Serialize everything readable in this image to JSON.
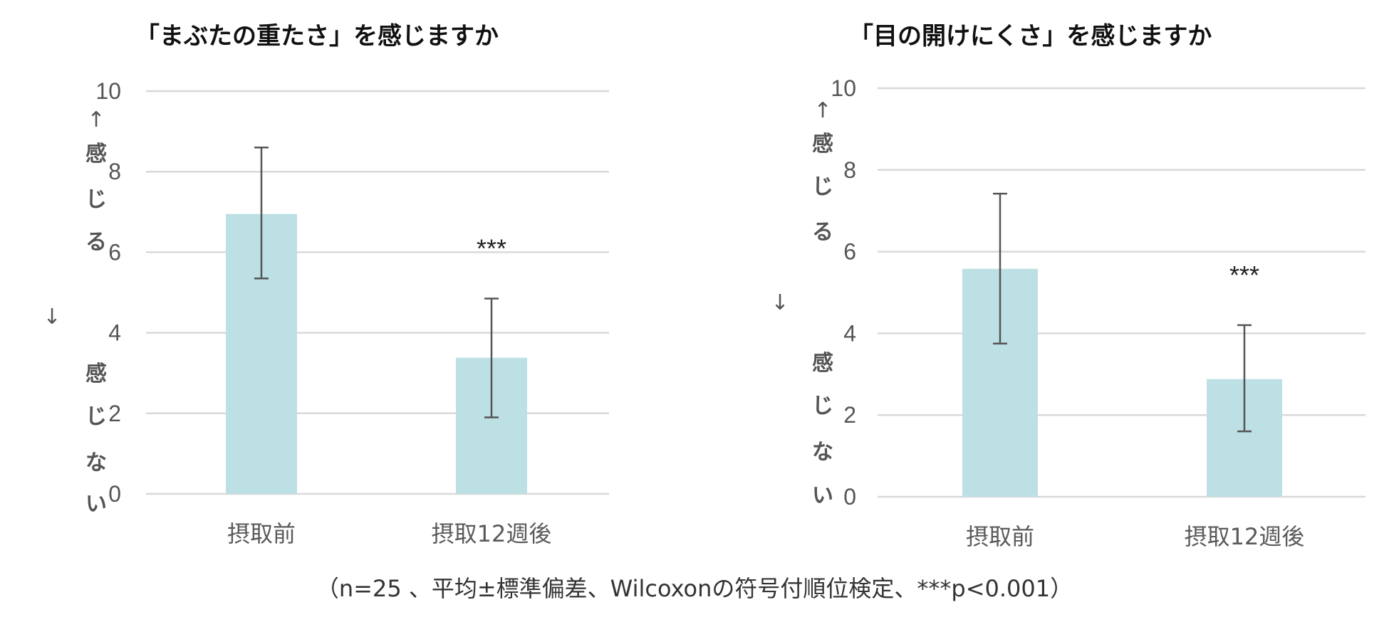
{
  "chart_data": [
    {
      "type": "bar",
      "title": "「まぶたの重たさ」を感じますか",
      "categories": [
        "摂取前",
        "摂取12週後"
      ],
      "values": [
        6.95,
        3.38
      ],
      "error_upper": [
        8.6,
        4.85
      ],
      "error_lower": [
        5.35,
        1.9
      ],
      "annotations": [
        "",
        "***"
      ],
      "ylim": [
        0,
        10
      ],
      "yticks": [
        "0",
        "2",
        "4",
        "6",
        "8",
        "10"
      ],
      "ylabel_top": [
        "↑",
        "感",
        "じ",
        "る"
      ],
      "ylabel_mid": "↓",
      "ylabel_bottom": [
        "感",
        "じ",
        "な",
        "い"
      ],
      "grid": true,
      "bar_color": "#bde0e4"
    },
    {
      "type": "bar",
      "title": "「目の開けにくさ」を感じますか",
      "categories": [
        "摂取前",
        "摂取12週後"
      ],
      "values": [
        5.58,
        2.88
      ],
      "error_upper": [
        7.42,
        4.2
      ],
      "error_lower": [
        3.75,
        1.6
      ],
      "annotations": [
        "",
        "***"
      ],
      "ylim": [
        0,
        10
      ],
      "yticks": [
        "0",
        "2",
        "4",
        "6",
        "8",
        "10"
      ],
      "ylabel_top": [
        "↑",
        "感",
        "じ",
        "る"
      ],
      "ylabel_mid": "↓",
      "ylabel_bottom": [
        "感",
        "じ",
        "な",
        "い"
      ],
      "grid": true,
      "bar_color": "#bde0e4"
    }
  ],
  "footnote": "（n=25 、平均±標準偏差、Wilcoxonの符号付順位検定、***p<0.001）"
}
